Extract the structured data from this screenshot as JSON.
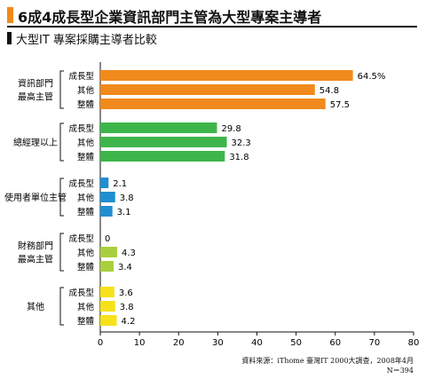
{
  "header": {
    "title": "6成4成長型企業資訊部門主管為大型專案主導者",
    "subtitle": "大型IT 專案採購主導者比較"
  },
  "source": {
    "line1": "資料來源：iThome 臺灣IT 2000大調查，2008年4月",
    "line2": "N＝394"
  },
  "chart_data": {
    "type": "bar",
    "orientation": "horizontal",
    "title": "大型IT 專案採購主導者比較",
    "xlim": [
      0,
      80
    ],
    "xticks": [
      0,
      10,
      20,
      30,
      40,
      50,
      60,
      70,
      80
    ],
    "groups": [
      {
        "name": [
          "資訊部門",
          "最高主管"
        ],
        "color": "#f08a1c",
        "bars": [
          {
            "label": "成長型",
            "value": 64.5,
            "text": "64.5%"
          },
          {
            "label": "其他",
            "value": 54.8,
            "text": "54.8"
          },
          {
            "label": "整體",
            "value": 57.5,
            "text": "57.5"
          }
        ]
      },
      {
        "name": [
          "總經理以上"
        ],
        "color": "#3db54a",
        "bars": [
          {
            "label": "成長型",
            "value": 29.8,
            "text": "29.8"
          },
          {
            "label": "其他",
            "value": 32.3,
            "text": "32.3"
          },
          {
            "label": "整體",
            "value": 31.8,
            "text": "31.8"
          }
        ]
      },
      {
        "name": [
          "使用者單位主管"
        ],
        "color": "#1f8fd0",
        "bars": [
          {
            "label": "成長型",
            "value": 2.1,
            "text": "2.1"
          },
          {
            "label": "其他",
            "value": 3.8,
            "text": "3.8"
          },
          {
            "label": "整體",
            "value": 3.1,
            "text": "3.1"
          }
        ]
      },
      {
        "name": [
          "財務部門",
          "最高主管"
        ],
        "color": "#a9cf3f",
        "bars": [
          {
            "label": "成長型",
            "value": 0,
            "text": "0"
          },
          {
            "label": "其他",
            "value": 4.3,
            "text": "4.3"
          },
          {
            "label": "整體",
            "value": 3.4,
            "text": "3.4"
          }
        ]
      },
      {
        "name": [
          "其他"
        ],
        "color": "#f7e11a",
        "bars": [
          {
            "label": "成長型",
            "value": 3.6,
            "text": "3.6"
          },
          {
            "label": "其他",
            "value": 3.8,
            "text": "3.8"
          },
          {
            "label": "整體",
            "value": 4.2,
            "text": "4.2"
          }
        ]
      }
    ]
  }
}
